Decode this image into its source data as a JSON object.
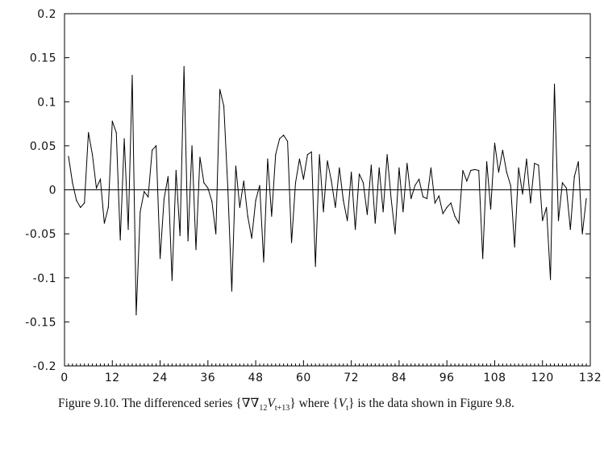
{
  "chart_data": {
    "type": "line",
    "title": "",
    "xlabel": "",
    "ylabel": "",
    "xlim": [
      0,
      132
    ],
    "ylim": [
      -0.2,
      0.2
    ],
    "x_ticks": [
      0,
      12,
      24,
      36,
      48,
      60,
      72,
      84,
      96,
      108,
      120,
      132
    ],
    "x_tick_labels": [
      "0",
      "12",
      "24",
      "36",
      "48",
      "60",
      "72",
      "84",
      "96",
      "108",
      "120",
      "132"
    ],
    "y_ticks": [
      -0.2,
      -0.15,
      -0.1,
      -0.05,
      0,
      0.05,
      0.1,
      0.15,
      0.2
    ],
    "y_tick_labels": [
      "-0.2",
      "-0.15",
      "-0.1",
      "-0.05",
      "0",
      "0.05",
      "0.1",
      "0.15",
      "0.2"
    ],
    "grid": false,
    "zero_line": true,
    "series": [
      {
        "x_start": 1,
        "values": [
          0.038,
          0.008,
          -0.012,
          -0.02,
          -0.015,
          0.065,
          0.04,
          0.002,
          0.012,
          -0.038,
          -0.02,
          0.078,
          0.065,
          -0.057,
          0.058,
          -0.045,
          0.13,
          -0.142,
          -0.025,
          -0.002,
          -0.008,
          0.045,
          0.05,
          -0.078,
          -0.01,
          0.015,
          -0.103,
          0.022,
          -0.052,
          0.14,
          -0.058,
          0.05,
          -0.068,
          0.037,
          0.008,
          0.002,
          -0.013,
          -0.05,
          0.114,
          0.095,
          0.002,
          -0.115,
          0.027,
          -0.02,
          0.01,
          -0.03,
          -0.055,
          -0.012,
          0.005,
          -0.082,
          0.035,
          -0.03,
          0.04,
          0.058,
          0.062,
          0.055,
          -0.06,
          0.008,
          0.035,
          0.012,
          0.04,
          0.043,
          -0.087,
          0.04,
          -0.025,
          0.033,
          0.01,
          -0.02,
          0.025,
          -0.012,
          -0.035,
          0.02,
          -0.045,
          0.018,
          0.008,
          -0.028,
          0.028,
          -0.038,
          0.025,
          -0.025,
          0.04,
          -0.01,
          -0.05,
          0.025,
          -0.025,
          0.03,
          -0.01,
          0.005,
          0.012,
          -0.008,
          -0.01,
          0.025,
          -0.015,
          -0.007,
          -0.027,
          -0.02,
          -0.015,
          -0.03,
          -0.038,
          0.022,
          0.01,
          0.022,
          0.023,
          0.022,
          -0.078,
          0.032,
          -0.022,
          0.053,
          0.02,
          0.045,
          0.02,
          0.005,
          -0.065,
          0.025,
          -0.005,
          0.035,
          -0.015,
          0.03,
          0.028,
          -0.035,
          -0.02,
          -0.102,
          0.12,
          -0.035,
          0.008,
          0.002,
          -0.045,
          0.015,
          0.032,
          -0.05,
          -0.01
        ]
      }
    ],
    "line_color": "#000000"
  },
  "caption": {
    "prefix": "Figure 9.10. The differenced series",
    "nabla": "∇∇",
    "nabla_sub": "12",
    "series_var": "V",
    "series_sub": "t+13",
    "middle": "where",
    "data_var": "V",
    "data_sub": "t",
    "suffix": "is the data shown in Figure 9.8."
  }
}
